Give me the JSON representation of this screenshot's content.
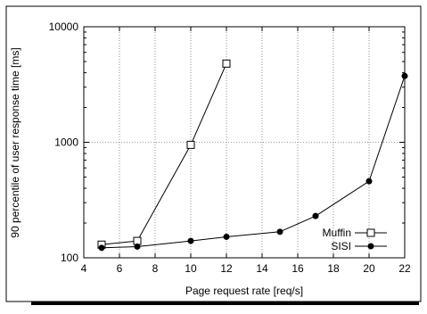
{
  "chart_data": {
    "type": "line",
    "xlabel": "Page request rate [req/s]",
    "ylabel": "90 percentile of user response time [ms]",
    "xlim": [
      4,
      22
    ],
    "ylim": [
      100,
      10000
    ],
    "yscale": "log",
    "xticks": [
      4,
      6,
      8,
      10,
      12,
      14,
      16,
      18,
      20,
      22
    ],
    "xtick_labels": [
      "4",
      "6",
      "8",
      "10",
      "12",
      "14",
      "16",
      "18",
      "20",
      "22"
    ],
    "yticks": [
      100,
      1000,
      10000
    ],
    "ytick_labels": [
      "100",
      "1000",
      "10000"
    ],
    "grid": true,
    "legend_position": "bottom-right",
    "series": [
      {
        "name": "Muffin",
        "marker": "open-square",
        "color": "#000000",
        "x": [
          5,
          7,
          10,
          12
        ],
        "y": [
          130,
          140,
          950,
          4800
        ]
      },
      {
        "name": "SISI",
        "marker": "filled-circle",
        "color": "#000000",
        "x": [
          5,
          7,
          10,
          12,
          15,
          17,
          20,
          22
        ],
        "y": [
          122,
          125,
          140,
          152,
          168,
          230,
          460,
          3750
        ]
      }
    ]
  }
}
